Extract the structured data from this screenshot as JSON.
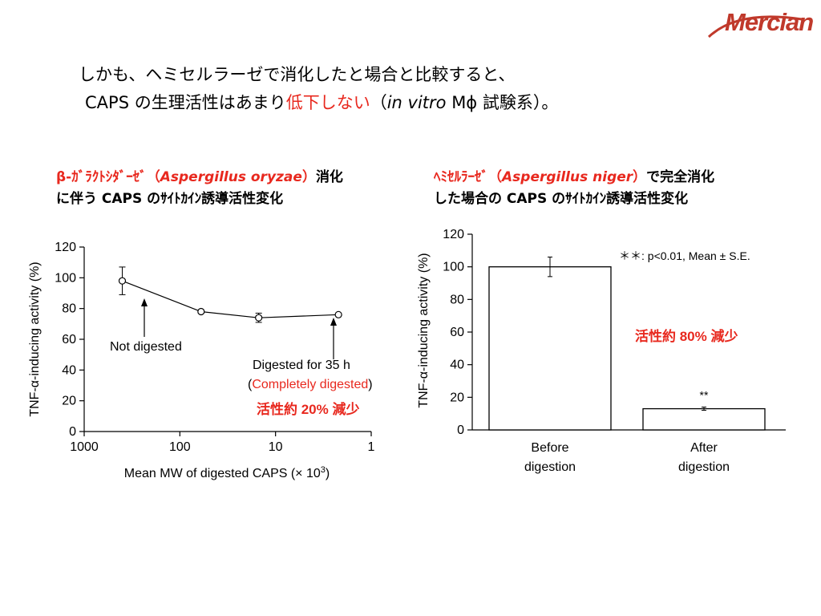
{
  "logo": {
    "text": "Mercian",
    "accent_color": "#c0392b"
  },
  "headline": {
    "line1": "しかも、ヘミセルラーゼで消化したと場合と比較すると、",
    "line2_prefix": "CAPS の生理活性はあまり",
    "line2_highlight": "低下しない",
    "line2_paren_open": "（",
    "line2_italic": "in vitro",
    "line2_suffix": " Mϕ  試験系）。"
  },
  "left_caption": {
    "line1_red": "β-ｶﾞﾗｸﾄｼﾀﾞｰｾﾞ（",
    "line1_red_italic": "Aspergillus oryzae",
    "line1_red_close": "）",
    "line1_black": "消化",
    "line2": "に伴う CAPS のｻｲﾄｶｲﾝ誘導活性変化"
  },
  "right_caption": {
    "line1_red": "ﾍﾐｾﾙﾗｰｾﾞ（",
    "line1_red_italic": "Aspergillus niger",
    "line1_red_close": "）",
    "line1_black": "で完全消化",
    "line2": "した場合の CAPS のｻｲﾄｶｲﾝ誘導活性変化"
  },
  "chart_data": [
    {
      "type": "line",
      "x_scale": "log",
      "x_reversed": true,
      "xlim": [
        1000,
        1
      ],
      "ylim": [
        0,
        120
      ],
      "xticks": [
        "1000",
        "100",
        "10",
        "1"
      ],
      "yticks": [
        "0",
        "20",
        "40",
        "60",
        "80",
        "100",
        "120"
      ],
      "ylabel": "TNF-α-inducing activity (%)",
      "xlabel_prefix": "Mean MW of digested CAPS (× 10",
      "xlabel_sup": "3",
      "xlabel_suffix": ")",
      "points": [
        {
          "x": 400,
          "y": 98,
          "err": 9
        },
        {
          "x": 60,
          "y": 78,
          "err": 0
        },
        {
          "x": 15,
          "y": 74,
          "err": 3
        },
        {
          "x": 2.2,
          "y": 76,
          "err": 0
        }
      ],
      "annotations": {
        "not_digested": "Not digested",
        "digested_35h": "Digested for 35 h",
        "paren_open": "(",
        "completely_digested": "Completely digested",
        "paren_close": ")",
        "reduction": "活性約 20% 減少"
      }
    },
    {
      "type": "bar",
      "ylim": [
        0,
        120
      ],
      "yticks": [
        "0",
        "20",
        "40",
        "60",
        "80",
        "100",
        "120"
      ],
      "ylabel": "TNF-α-inducing activity (%)",
      "categories": [
        {
          "line1": "Before",
          "line2": "digestion"
        },
        {
          "line1": "After",
          "line2": "digestion"
        }
      ],
      "values": [
        100,
        13
      ],
      "errors": [
        6,
        1
      ],
      "significance": [
        "",
        "**"
      ],
      "legend_note": "＊＊: p<0.01,  Mean ± S.E.",
      "reduction": "活性約 80% 減少"
    }
  ],
  "colors": {
    "red": "#e8281e",
    "black": "#000000"
  }
}
